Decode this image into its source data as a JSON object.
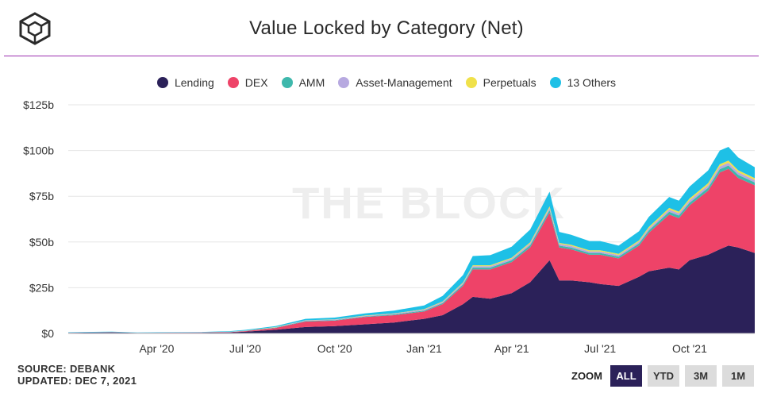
{
  "title": "Value Locked by Category (Net)",
  "watermark": "THE BLOCK",
  "source": "SOURCE: DEBANK",
  "updated": "UPDATED: DEC 7, 2021",
  "zoom": {
    "label": "ZOOM",
    "buttons": [
      "ALL",
      "YTD",
      "3M",
      "1M"
    ],
    "active": "ALL"
  },
  "colors": {
    "Lending": "#2b2159",
    "DEX": "#ee4368",
    "AMM": "#3eb8ac",
    "Asset-Management": "#b7a9e0",
    "Perpetuals": "#f0e14a",
    "13 Others": "#1ec0e6",
    "grid": "#e6e6e6",
    "title_rule": "#9b2fb0"
  },
  "chart_data": {
    "type": "area",
    "stacked": true,
    "title": "Value Locked by Category (Net)",
    "xlabel": "",
    "ylabel": "",
    "ylim": [
      0,
      125
    ],
    "y_unit": "billions USD",
    "y_ticks": [
      "$0",
      "$25b",
      "$50b",
      "$75b",
      "$100b",
      "$125b"
    ],
    "y_tick_values": [
      0,
      25,
      50,
      75,
      100,
      125
    ],
    "x_tick_labels": [
      "Apr '20",
      "Jul '20",
      "Oct '20",
      "Jan '21",
      "Apr '21",
      "Jul '21",
      "Oct '21"
    ],
    "x_tick_dates": [
      "2020-04-01",
      "2020-07-01",
      "2020-10-01",
      "2021-01-01",
      "2021-04-01",
      "2021-07-01",
      "2021-10-01"
    ],
    "x_range": [
      "2020-01-01",
      "2021-12-07"
    ],
    "legend_position": "top-center",
    "dates": [
      "2020-01-01",
      "2020-02-15",
      "2020-03-12",
      "2020-04-01",
      "2020-05-15",
      "2020-06-15",
      "2020-07-01",
      "2020-08-01",
      "2020-09-01",
      "2020-10-01",
      "2020-11-01",
      "2020-12-01",
      "2021-01-01",
      "2021-01-20",
      "2021-02-10",
      "2021-02-20",
      "2021-03-10",
      "2021-04-01",
      "2021-04-20",
      "2021-05-10",
      "2021-05-20",
      "2021-06-01",
      "2021-06-20",
      "2021-07-01",
      "2021-07-20",
      "2021-08-10",
      "2021-08-20",
      "2021-09-10",
      "2021-09-20",
      "2021-10-01",
      "2021-10-20",
      "2021-11-01",
      "2021-11-10",
      "2021-11-20",
      "2021-12-07"
    ],
    "series": [
      {
        "name": "Lending",
        "values": [
          0.3,
          0.6,
          0.3,
          0.3,
          0.4,
          0.5,
          1.0,
          2.0,
          3.5,
          4.0,
          5.0,
          6.0,
          8.0,
          10.0,
          16.0,
          20.0,
          19.0,
          22.0,
          28.0,
          40.0,
          29.0,
          29.0,
          28.0,
          27.0,
          26.0,
          31.0,
          34.0,
          36.0,
          35.0,
          40.0,
          43.0,
          46.0,
          48.0,
          47.0,
          44.0
        ]
      },
      {
        "name": "DEX",
        "values": [
          0.1,
          0.1,
          0.05,
          0.1,
          0.1,
          0.2,
          0.3,
          1.0,
          3.0,
          3.0,
          4.0,
          4.0,
          4.0,
          6.0,
          10.0,
          15.0,
          16.0,
          17.0,
          19.0,
          26.0,
          18.0,
          17.0,
          15.0,
          16.0,
          15.0,
          17.0,
          21.0,
          29.0,
          28.0,
          30.0,
          35.0,
          42.0,
          42.0,
          38.0,
          37.0
        ]
      },
      {
        "name": "AMM",
        "values": [
          0.05,
          0.05,
          0.05,
          0.05,
          0.05,
          0.1,
          0.1,
          0.2,
          0.3,
          0.3,
          0.3,
          0.4,
          0.5,
          0.6,
          0.8,
          1.0,
          1.0,
          1.0,
          1.2,
          1.5,
          1.0,
          1.0,
          1.0,
          1.0,
          1.0,
          1.2,
          1.3,
          1.5,
          1.5,
          1.5,
          1.6,
          1.8,
          1.8,
          1.7,
          1.6
        ]
      },
      {
        "name": "Asset-Management",
        "values": [
          0.05,
          0.05,
          0.05,
          0.05,
          0.05,
          0.1,
          0.1,
          0.2,
          0.3,
          0.3,
          0.3,
          0.4,
          0.5,
          0.6,
          0.7,
          0.8,
          0.8,
          0.9,
          1.0,
          1.2,
          0.9,
          0.9,
          0.9,
          0.9,
          0.9,
          1.0,
          1.1,
          1.2,
          1.2,
          1.3,
          1.4,
          1.5,
          1.5,
          1.4,
          1.3
        ]
      },
      {
        "name": "Perpetuals",
        "values": [
          0.0,
          0.0,
          0.0,
          0.0,
          0.0,
          0.05,
          0.05,
          0.1,
          0.1,
          0.1,
          0.2,
          0.2,
          0.3,
          0.3,
          0.4,
          0.5,
          0.5,
          0.5,
          0.6,
          0.8,
          0.6,
          0.6,
          0.6,
          0.6,
          0.6,
          0.7,
          0.8,
          0.9,
          0.9,
          1.0,
          1.1,
          1.2,
          1.2,
          1.1,
          1.0
        ]
      },
      {
        "name": "13 Others",
        "values": [
          0.2,
          0.2,
          0.1,
          0.2,
          0.2,
          0.3,
          0.4,
          0.5,
          0.8,
          1.0,
          1.2,
          1.5,
          2.0,
          3.0,
          4.0,
          5.0,
          5.5,
          6.0,
          7.0,
          8.0,
          6.0,
          5.5,
          5.0,
          5.0,
          4.5,
          5.0,
          5.5,
          6.0,
          6.0,
          6.5,
          7.0,
          7.5,
          7.5,
          7.0,
          6.0
        ]
      }
    ]
  }
}
